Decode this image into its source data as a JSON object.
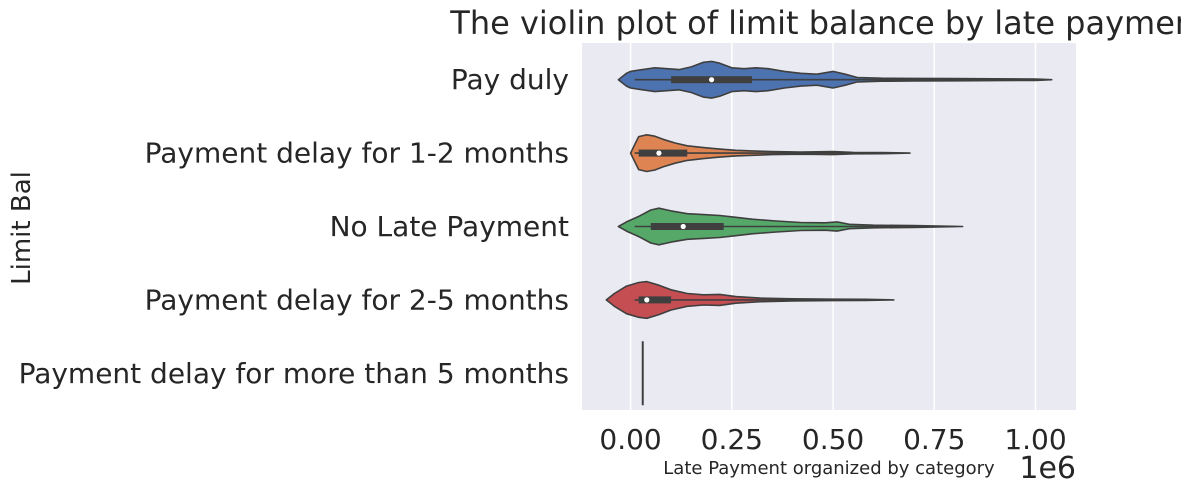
{
  "chart_data": {
    "type": "violin",
    "orientation": "horizontal",
    "title": "The violin plot of limit balance by late payment",
    "xlabel": "Late Payment organized by category",
    "ylabel": "Limit Bal",
    "x_offset_label": "1e6",
    "xlim": [
      -0.12,
      1.1
    ],
    "xticks": [
      0.0,
      0.25,
      0.5,
      0.75,
      1.0
    ],
    "xtick_labels": [
      "0.00",
      "0.25",
      "0.50",
      "0.75",
      "1.00"
    ],
    "grid": true,
    "categories": [
      "Pay duly",
      "Payment delay for 1-2 months",
      "No Late Payment",
      "Payment delay for 2-5 months",
      "Payment delay for more than 5 months"
    ],
    "series": [
      {
        "category": "Pay duly",
        "color": "#4c72b0",
        "min": 0.01,
        "q1": 0.1,
        "median": 0.2,
        "q3": 0.3,
        "max": 1.0,
        "density": [
          [
            -0.03,
            0.0
          ],
          [
            -0.01,
            0.35
          ],
          [
            0.0,
            0.45
          ],
          [
            0.03,
            0.55
          ],
          [
            0.06,
            0.65
          ],
          [
            0.09,
            0.6
          ],
          [
            0.12,
            0.55
          ],
          [
            0.15,
            0.7
          ],
          [
            0.18,
            0.95
          ],
          [
            0.2,
            1.0
          ],
          [
            0.22,
            0.9
          ],
          [
            0.25,
            0.65
          ],
          [
            0.28,
            0.6
          ],
          [
            0.31,
            0.65
          ],
          [
            0.34,
            0.6
          ],
          [
            0.38,
            0.45
          ],
          [
            0.42,
            0.35
          ],
          [
            0.46,
            0.3
          ],
          [
            0.5,
            0.45
          ],
          [
            0.53,
            0.3
          ],
          [
            0.56,
            0.12
          ],
          [
            0.62,
            0.08
          ],
          [
            0.7,
            0.07
          ],
          [
            0.8,
            0.06
          ],
          [
            0.9,
            0.05
          ],
          [
            1.0,
            0.04
          ],
          [
            1.04,
            0.0
          ]
        ]
      },
      {
        "category": "Payment delay for 1-2 months",
        "color": "#dd8452",
        "min": 0.01,
        "q1": 0.02,
        "median": 0.07,
        "q3": 0.14,
        "max": 0.6,
        "density": [
          [
            0.0,
            0.0
          ],
          [
            0.01,
            0.45
          ],
          [
            0.02,
            0.9
          ],
          [
            0.04,
            1.0
          ],
          [
            0.06,
            0.92
          ],
          [
            0.08,
            0.75
          ],
          [
            0.11,
            0.55
          ],
          [
            0.14,
            0.4
          ],
          [
            0.18,
            0.3
          ],
          [
            0.22,
            0.22
          ],
          [
            0.26,
            0.15
          ],
          [
            0.3,
            0.12
          ],
          [
            0.35,
            0.08
          ],
          [
            0.42,
            0.06
          ],
          [
            0.5,
            0.08
          ],
          [
            0.55,
            0.04
          ],
          [
            0.62,
            0.03
          ],
          [
            0.69,
            0.0
          ]
        ]
      },
      {
        "category": "No Late Payment",
        "color": "#55a868",
        "min": 0.01,
        "q1": 0.05,
        "median": 0.13,
        "q3": 0.23,
        "max": 0.8,
        "density": [
          [
            -0.03,
            0.0
          ],
          [
            -0.01,
            0.25
          ],
          [
            0.02,
            0.55
          ],
          [
            0.05,
            0.9
          ],
          [
            0.07,
            1.0
          ],
          [
            0.1,
            0.85
          ],
          [
            0.14,
            0.7
          ],
          [
            0.18,
            0.65
          ],
          [
            0.22,
            0.6
          ],
          [
            0.26,
            0.5
          ],
          [
            0.3,
            0.4
          ],
          [
            0.36,
            0.3
          ],
          [
            0.42,
            0.22
          ],
          [
            0.48,
            0.2
          ],
          [
            0.51,
            0.25
          ],
          [
            0.54,
            0.12
          ],
          [
            0.6,
            0.07
          ],
          [
            0.7,
            0.05
          ],
          [
            0.82,
            0.0
          ]
        ]
      },
      {
        "category": "Payment delay for 2-5 months",
        "color": "#c44e52",
        "min": 0.01,
        "q1": 0.02,
        "median": 0.04,
        "q3": 0.1,
        "max": 0.5,
        "density": [
          [
            -0.06,
            0.0
          ],
          [
            -0.04,
            0.35
          ],
          [
            -0.01,
            0.75
          ],
          [
            0.02,
            0.95
          ],
          [
            0.04,
            1.0
          ],
          [
            0.07,
            0.8
          ],
          [
            0.1,
            0.55
          ],
          [
            0.14,
            0.35
          ],
          [
            0.18,
            0.28
          ],
          [
            0.22,
            0.3
          ],
          [
            0.26,
            0.18
          ],
          [
            0.32,
            0.1
          ],
          [
            0.4,
            0.06
          ],
          [
            0.5,
            0.04
          ],
          [
            0.58,
            0.03
          ],
          [
            0.65,
            0.0
          ]
        ]
      },
      {
        "category": "Payment delay for more than 5 months",
        "color": "#8172b3",
        "single_value": 0.03
      }
    ]
  }
}
